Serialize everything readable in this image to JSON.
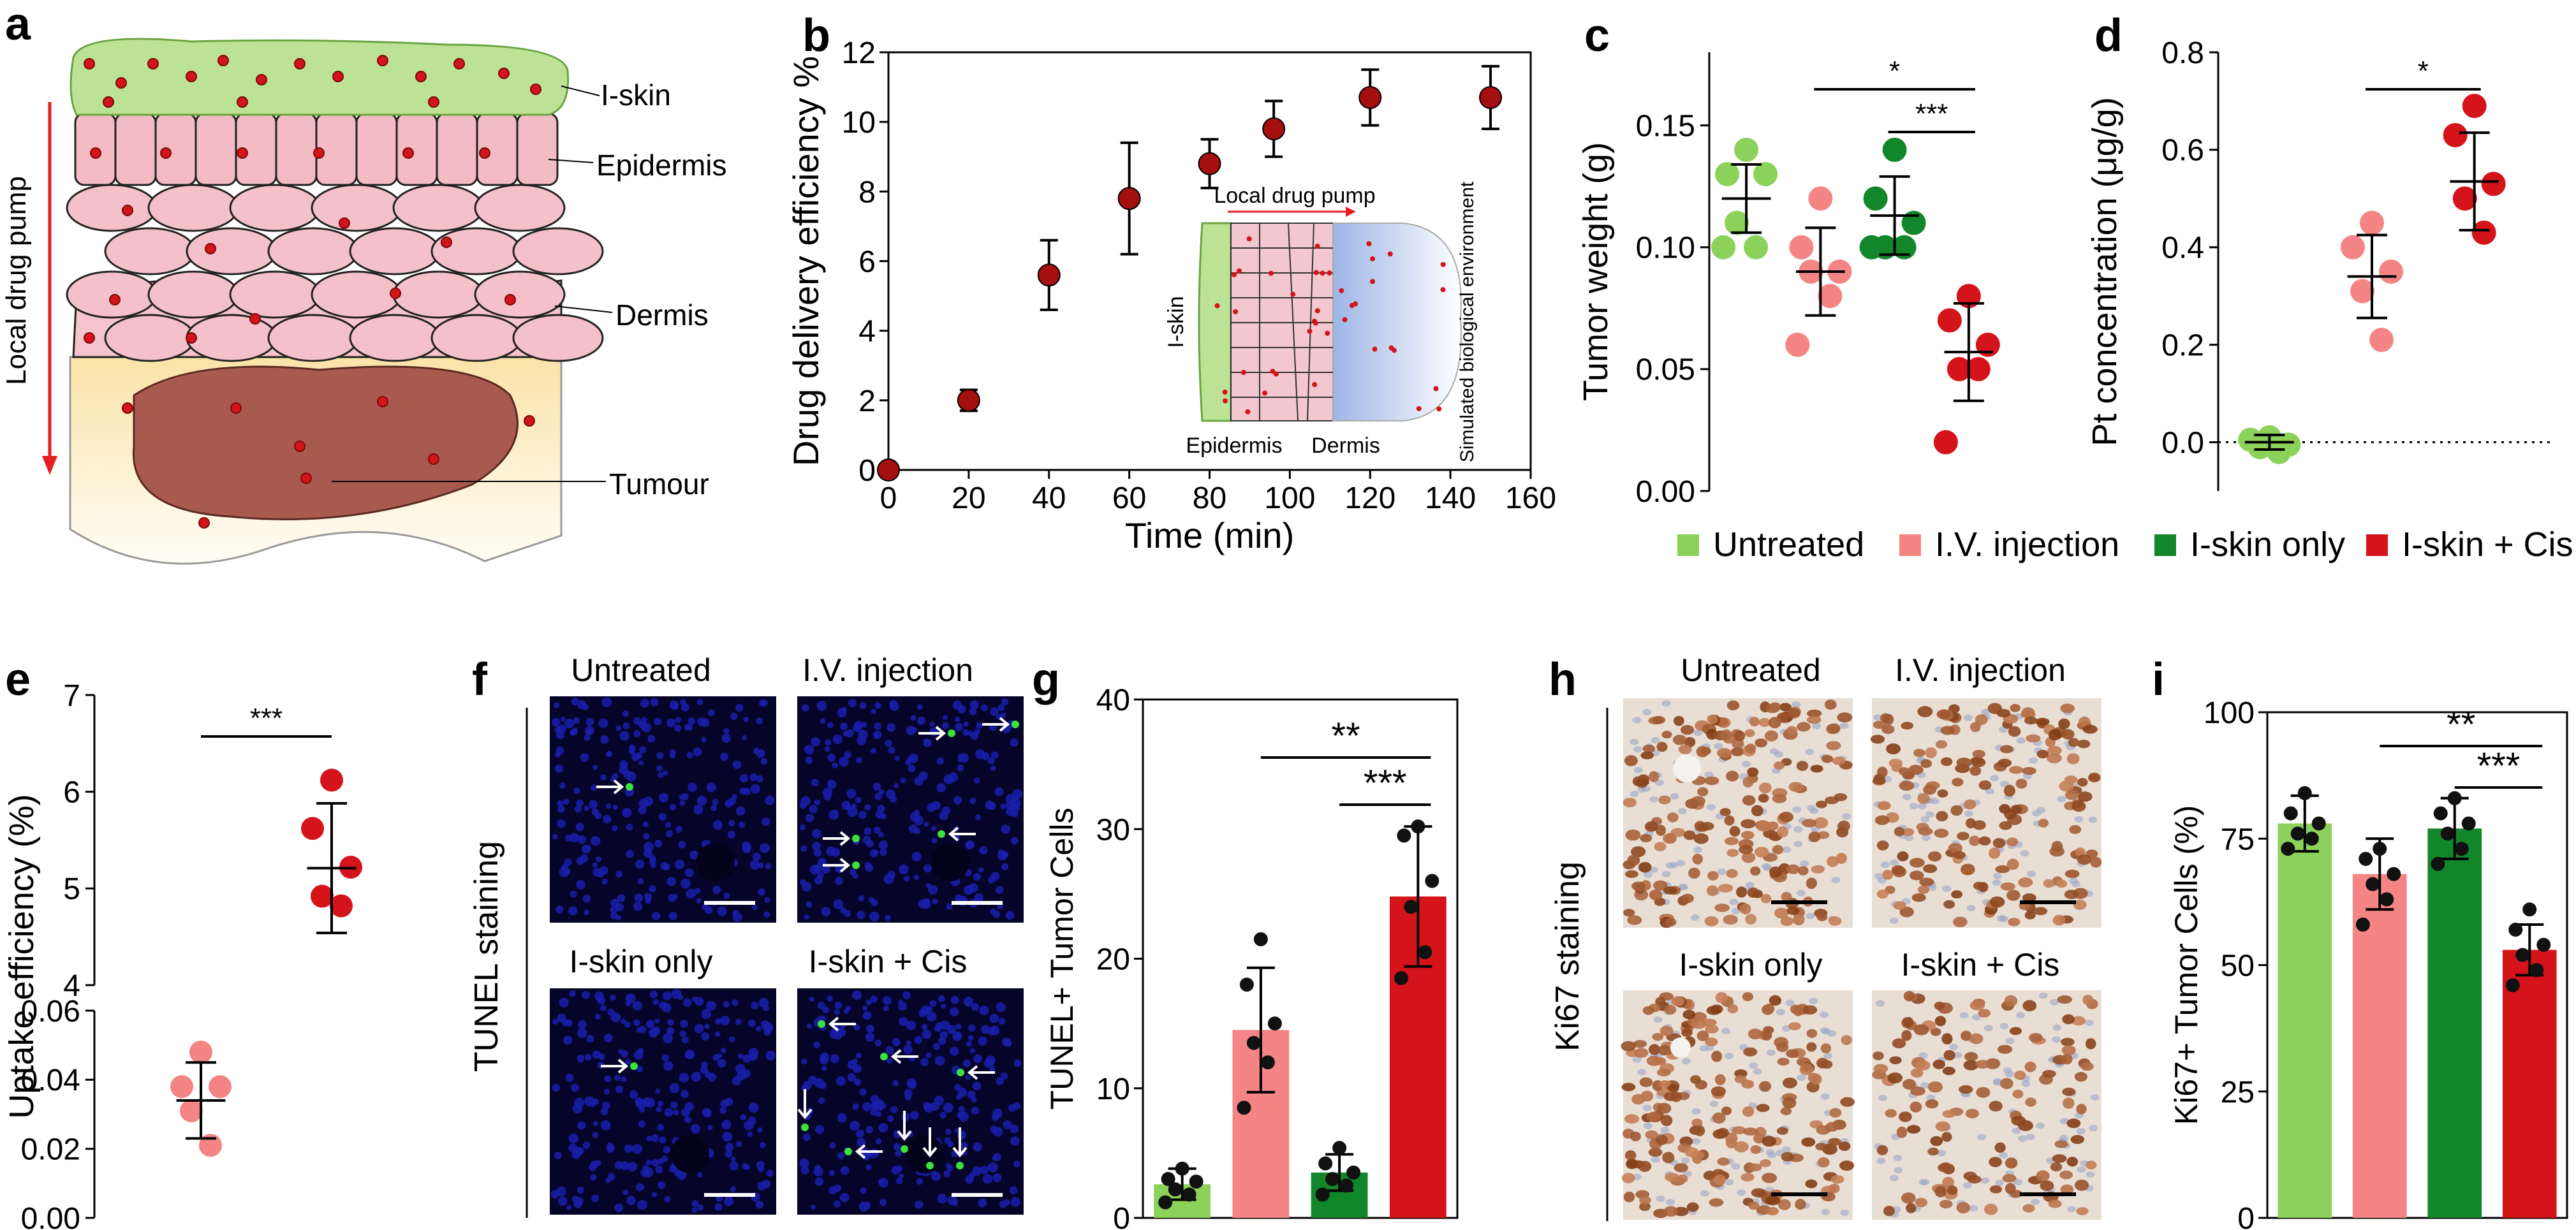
{
  "panels": {
    "a": "a",
    "b": "b",
    "c": "c",
    "d": "d",
    "e": "e",
    "f": "f",
    "g": "g",
    "h": "h",
    "i": "i"
  },
  "colors": {
    "untreated": "#8cd15a",
    "iv": "#f58484",
    "skin": "#12862a",
    "cis": "#d4131b",
    "marker_b": "#a50f0f",
    "skin_green": "#b7e08e",
    "epi": "#f3bcc5",
    "tumour": "#a95a4f",
    "tissue_bg": "#fbeec2",
    "nuclei": "#1a1eab",
    "ihc_bg": "#e8ded4"
  },
  "schematic_a": {
    "labels": [
      "I-skin",
      "Epidermis",
      "Dermis",
      "Tumour"
    ],
    "arrow_label": "Local drug pump"
  },
  "legend": {
    "items": [
      {
        "label": "Untreated",
        "key": "untreated"
      },
      {
        "label": "I.V. injection",
        "key": "iv"
      },
      {
        "label": "I-skin only",
        "key": "skin"
      },
      {
        "label": "I-skin + Cis",
        "key": "cis"
      }
    ]
  },
  "fluor_labels": {
    "side": "TUNEL staining",
    "tiles": [
      "Untreated",
      "I.V. injection",
      "I-skin only",
      "I-skin + Cis"
    ]
  },
  "ihc_labels": {
    "side": "Ki67 staining",
    "tiles": [
      "Untreated",
      "I.V. injection",
      "I-skin only",
      "I-skin + Cis"
    ]
  },
  "chart_data": [
    {
      "panel": "b",
      "type": "scatter",
      "xlabel": "Time (min)",
      "ylabel": "Drug delivery efficiency %",
      "xlim": [
        0,
        160
      ],
      "ylim": [
        0,
        12
      ],
      "xticks": [
        0,
        20,
        40,
        60,
        80,
        100,
        120,
        140,
        160
      ],
      "yticks": [
        0,
        2,
        4,
        6,
        8,
        10,
        12
      ],
      "x": [
        0,
        20,
        40,
        60,
        80,
        96,
        120,
        150
      ],
      "y": [
        0,
        2.0,
        5.6,
        7.8,
        8.8,
        9.8,
        10.7,
        10.7
      ],
      "err": [
        0,
        0.3,
        1.0,
        1.6,
        0.7,
        0.8,
        0.8,
        0.9
      ],
      "inset": {
        "arrow_label": "Local drug pump",
        "labels": [
          "I-skin",
          "Epidermis",
          "Dermis",
          "Simulated biological environment"
        ]
      }
    },
    {
      "panel": "c",
      "type": "scatter",
      "ylabel": "Tumor weight (g)",
      "ylim": [
        0,
        0.18
      ],
      "yticks": [
        "0.00",
        "0.05",
        "0.10",
        "0.15"
      ],
      "groups": [
        {
          "key": "untreated",
          "points": [
            0.14,
            0.13,
            0.13,
            0.11,
            0.1,
            0.1
          ],
          "mean": 0.12,
          "sd": 0.014
        },
        {
          "key": "iv",
          "points": [
            0.12,
            0.1,
            0.09,
            0.09,
            0.08,
            0.06
          ],
          "mean": 0.09,
          "sd": 0.018
        },
        {
          "key": "skin",
          "points": [
            0.14,
            0.12,
            0.11,
            0.1,
            0.1,
            0.1
          ],
          "mean": 0.113,
          "sd": 0.016
        },
        {
          "key": "cis",
          "points": [
            0.08,
            0.07,
            0.06,
            0.05,
            0.05,
            0.02
          ],
          "mean": 0.057,
          "sd": 0.02
        }
      ],
      "significance": [
        {
          "from": 1,
          "to": 3,
          "label": "*"
        },
        {
          "from": 2,
          "to": 3,
          "label": "***"
        }
      ]
    },
    {
      "panel": "d",
      "type": "scatter",
      "ylabel": "Pt concentration (μg/g)",
      "ylim": [
        -0.1,
        0.8
      ],
      "yticks": [
        "0.0",
        "0.2",
        "0.4",
        "0.6",
        "0.8"
      ],
      "groups": [
        {
          "key": "untreated",
          "points": [
            0.01,
            0.005,
            -0.005,
            -0.01,
            -0.02
          ],
          "mean": 0.0,
          "sd": 0.015
        },
        {
          "key": "iv",
          "points": [
            0.45,
            0.4,
            0.35,
            0.31,
            0.21
          ],
          "mean": 0.34,
          "sd": 0.085
        },
        {
          "key": "cis",
          "points": [
            0.69,
            0.63,
            0.53,
            0.5,
            0.43
          ],
          "mean": 0.535,
          "sd": 0.1
        }
      ],
      "significance": [
        {
          "from": 1,
          "to": 2,
          "label": "*"
        }
      ],
      "zero_line": true
    },
    {
      "panel": "e",
      "type": "scatter",
      "ylabel": "Uptake efficiency (%)",
      "upper": {
        "ylim": [
          4,
          7
        ],
        "yticks": [
          "4",
          "5",
          "6",
          "7"
        ]
      },
      "lower": {
        "ylim": [
          0,
          0.06
        ],
        "yticks": [
          "0.00",
          "0.02",
          "0.04",
          "0.06"
        ]
      },
      "groups": [
        {
          "key": "iv",
          "points": [
            0.048,
            0.038,
            0.038,
            0.031,
            0.021
          ],
          "mean": 0.034,
          "sd": 0.011
        },
        {
          "key": "cis",
          "points": [
            6.12,
            5.62,
            5.22,
            4.92,
            4.82
          ],
          "mean": 5.21,
          "sd": 0.67
        }
      ],
      "significance": [
        {
          "from": 0,
          "to": 1,
          "label": "***"
        }
      ]
    },
    {
      "panel": "g",
      "type": "bar",
      "ylabel": "TUNEL+ Tumor Cells",
      "ylim": [
        0,
        40
      ],
      "yticks": [
        0,
        10,
        20,
        30,
        40
      ],
      "groups": [
        {
          "key": "untreated",
          "mean": 2.6,
          "sd": 1.2,
          "points": [
            3.8,
            3.0,
            2.8,
            2.2,
            1.8,
            1.2
          ]
        },
        {
          "key": "iv",
          "mean": 14.5,
          "sd": 4.8,
          "points": [
            21.5,
            18.0,
            15.0,
            13.5,
            12.0,
            8.5
          ]
        },
        {
          "key": "skin",
          "mean": 3.5,
          "sd": 1.4,
          "points": [
            5.4,
            4.2,
            3.5,
            3.0,
            2.5,
            1.8
          ]
        },
        {
          "key": "cis",
          "mean": 24.8,
          "sd": 5.4,
          "points": [
            30.2,
            29.5,
            26.0,
            24.0,
            20.5,
            18.5
          ]
        }
      ],
      "significance": [
        {
          "from": 1,
          "to": 3,
          "label": "**"
        },
        {
          "from": 2,
          "to": 3,
          "label": "***"
        }
      ]
    },
    {
      "panel": "i",
      "type": "bar",
      "ylabel": "Ki67+ Tumor Cells (%)",
      "ylim": [
        0,
        100
      ],
      "yticks": [
        0,
        25,
        50,
        75,
        100
      ],
      "groups": [
        {
          "key": "untreated",
          "mean": 78,
          "sd": 5.5,
          "points": [
            84,
            80,
            78,
            76,
            75,
            73
          ]
        },
        {
          "key": "iv",
          "mean": 68,
          "sd": 7,
          "points": [
            73,
            71,
            68,
            66,
            63,
            58
          ]
        },
        {
          "key": "skin",
          "mean": 77,
          "sd": 6,
          "points": [
            83,
            80,
            78,
            76,
            73,
            70
          ]
        },
        {
          "key": "cis",
          "mean": 53,
          "sd": 5,
          "points": [
            61,
            57,
            54,
            52,
            49,
            46
          ]
        }
      ],
      "significance": [
        {
          "from": 1,
          "to": 3,
          "label": "**"
        },
        {
          "from": 2,
          "to": 3,
          "label": "***"
        }
      ]
    }
  ]
}
